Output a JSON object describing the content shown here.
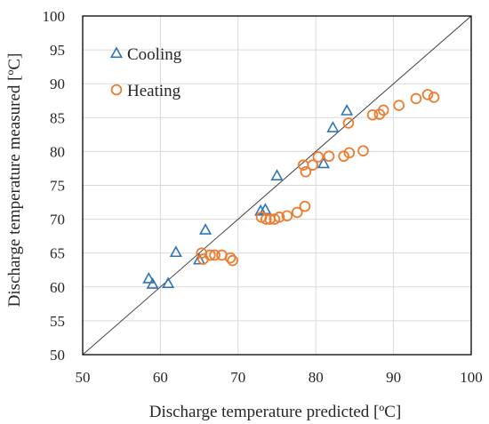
{
  "chart_data": {
    "type": "scatter",
    "xlabel": "Discharge temperature predicted [ºC]",
    "ylabel": "Discharge temperature measured [ºC]",
    "xlim": [
      50,
      100
    ],
    "ylim": [
      50,
      100
    ],
    "x_ticks": [
      "50",
      "60",
      "70",
      "80",
      "90",
      "100"
    ],
    "y_ticks": [
      "50",
      "55",
      "60",
      "65",
      "70",
      "75",
      "80",
      "85",
      "90",
      "95",
      "100"
    ],
    "grid": true,
    "reference_line": {
      "from": [
        50,
        50
      ],
      "to": [
        100,
        100
      ]
    },
    "legend_position": "top-left",
    "series": [
      {
        "name": "Cooling",
        "marker": "triangle-open",
        "color": "#2E75B6",
        "points": [
          [
            58.5,
            61.2
          ],
          [
            59.0,
            60.4
          ],
          [
            61.0,
            60.5
          ],
          [
            62.0,
            65.1
          ],
          [
            65.0,
            64.0
          ],
          [
            65.8,
            68.4
          ],
          [
            72.9,
            71.2
          ],
          [
            73.5,
            71.4
          ],
          [
            75.0,
            76.4
          ],
          [
            81.0,
            78.2
          ],
          [
            82.2,
            83.5
          ],
          [
            84.0,
            86.0
          ]
        ]
      },
      {
        "name": "Heating",
        "marker": "circle-open",
        "color": "#ED7D31",
        "points": [
          [
            65.3,
            65.0
          ],
          [
            65.5,
            64.1
          ],
          [
            66.4,
            64.7
          ],
          [
            67.0,
            64.7
          ],
          [
            67.9,
            64.7
          ],
          [
            69.0,
            64.3
          ],
          [
            69.3,
            63.9
          ],
          [
            73.0,
            70.3
          ],
          [
            73.6,
            70.0
          ],
          [
            74.1,
            70.0
          ],
          [
            74.7,
            70.0
          ],
          [
            75.3,
            70.3
          ],
          [
            76.3,
            70.5
          ],
          [
            77.6,
            71.0
          ],
          [
            78.6,
            71.9
          ],
          [
            78.4,
            78.0
          ],
          [
            78.7,
            77.0
          ],
          [
            79.6,
            78.0
          ],
          [
            80.3,
            79.2
          ],
          [
            81.7,
            79.3
          ],
          [
            83.6,
            79.3
          ],
          [
            84.3,
            79.8
          ],
          [
            84.2,
            84.2
          ],
          [
            86.1,
            80.1
          ],
          [
            87.3,
            85.4
          ],
          [
            88.2,
            85.5
          ],
          [
            88.7,
            86.1
          ],
          [
            90.7,
            86.8
          ],
          [
            92.9,
            87.8
          ],
          [
            94.4,
            88.4
          ],
          [
            95.2,
            88.0
          ]
        ]
      }
    ]
  }
}
